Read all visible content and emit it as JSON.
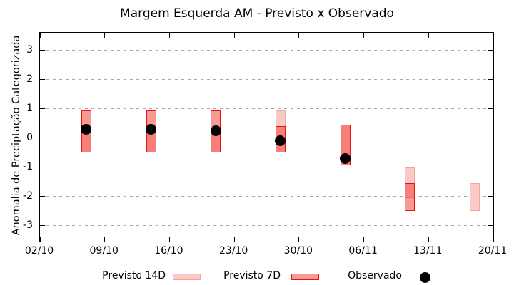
{
  "title": "Margem Esquerda AM - Previsto x Observado",
  "axes": {
    "ylabel": "Anomalia de Preciptação Categorizada"
  },
  "legend": {
    "previsto_14d": "Previsto 14D",
    "previsto_7d": "Previsto 7D",
    "observado": "Observado"
  },
  "colors": {
    "previsto_14d_fill": "#fbcac6",
    "previsto_14d_border": "#f2a69e",
    "previsto_7d_fill": "#f7918a",
    "previsto_7d_border": "#e2170c",
    "overlap_fill": "#f57d74",
    "observado": "#000000",
    "grid": "#a8a8a8"
  },
  "chart_data": {
    "type": "bar",
    "subtype": "floating-range-bars-with-scatter",
    "title": "Margem Esquerda AM - Previsto x Observado",
    "xlabel": "",
    "ylabel": "Anomalia de Preciptação Categorizada",
    "ylim": [
      -3.5,
      3.5
    ],
    "grid": "horizontal-dashed",
    "legend_position": "below",
    "y_ticks": [
      3,
      2,
      1,
      0,
      -1,
      -2,
      -3
    ],
    "x_ticks": [
      "02/10",
      "09/10",
      "16/10",
      "23/10",
      "30/10",
      "06/11",
      "13/11",
      "20/11"
    ],
    "x_span_days": 49,
    "series_names": [
      "Previsto 14D",
      "Previsto 7D",
      "Observado"
    ],
    "points": [
      {
        "date": "07/10",
        "day": 5,
        "previsto_14d": [
          -0.5,
          0.35
        ],
        "previsto_7d": [
          -0.5,
          0.95
        ],
        "observado": 0.3
      },
      {
        "date": "14/10",
        "day": 12,
        "previsto_14d": [
          -0.5,
          0.35
        ],
        "previsto_7d": [
          -0.5,
          0.95
        ],
        "observado": 0.3
      },
      {
        "date": "21/10",
        "day": 19,
        "previsto_14d": [
          -0.5,
          0.35
        ],
        "previsto_7d": [
          -0.5,
          0.95
        ],
        "observado": 0.25
      },
      {
        "date": "28/10",
        "day": 26,
        "previsto_14d": [
          -0.5,
          0.95
        ],
        "previsto_7d": [
          -0.5,
          0.4
        ],
        "observado": -0.1
      },
      {
        "date": "04/11",
        "day": 33,
        "previsto_14d": [
          -0.95,
          0.45
        ],
        "previsto_7d": [
          -0.95,
          0.45
        ],
        "observado": -0.7
      },
      {
        "date": "11/11",
        "day": 40,
        "previsto_14d": [
          -2.05,
          -1.0
        ],
        "previsto_7d": [
          -2.5,
          -1.55
        ],
        "observado": null
      },
      {
        "date": "18/11",
        "day": 47,
        "previsto_14d": [
          -2.5,
          -1.55
        ],
        "previsto_7d": null,
        "observado": null
      }
    ]
  }
}
